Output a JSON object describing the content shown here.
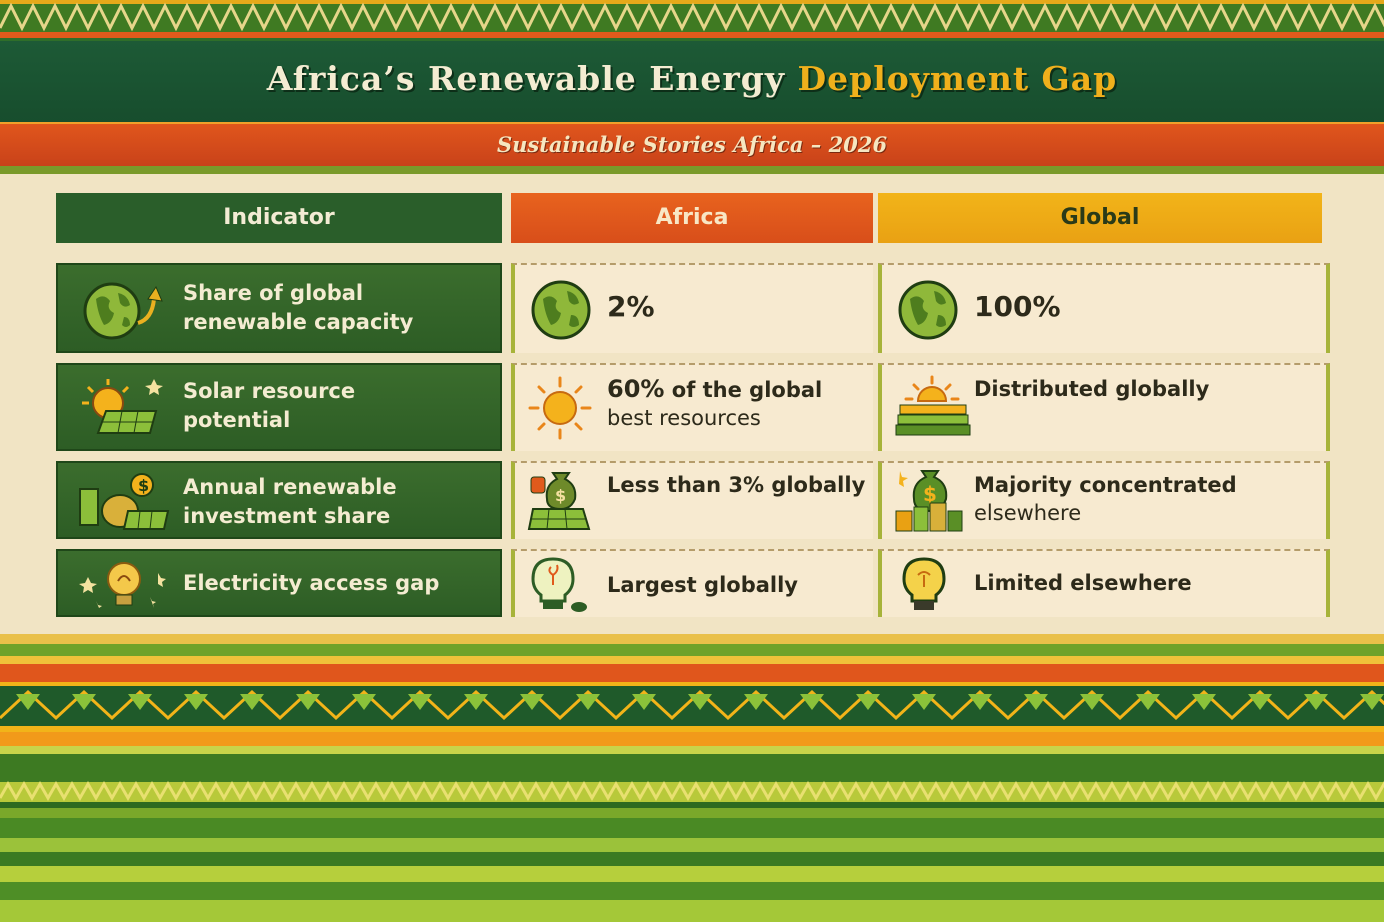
{
  "header": {
    "title_main": "Africa’s Renewable Energy ",
    "title_accent": "Deployment Gap",
    "subtitle": "Sustainable Stories Africa – 2026"
  },
  "table": {
    "headers": {
      "indicator": "Indicator",
      "africa": "Africa",
      "global": "Global"
    },
    "rows": [
      {
        "indicator": "Share of global renewable capacity",
        "indicator_line1": "Share of global",
        "indicator_line2": "renewable capacity",
        "africa_value": "2%",
        "global_value": "100%",
        "icon": "globe-icon"
      },
      {
        "indicator": "Solar resource potential",
        "indicator_line1": "Solar resource",
        "indicator_line2": "potential",
        "africa_value_bold": "60%",
        "africa_value_rest": " of the global",
        "africa_value_line2": "best resources",
        "global_value": "Distributed globally",
        "icon": "sun-solar-panel-icon"
      },
      {
        "indicator": "Annual renewable investment share",
        "indicator_line1": "Annual renewable",
        "indicator_line2": "investment share",
        "africa_value": "Less than 3% globally",
        "global_value_line1": "Majority concentrated",
        "global_value_line2": "elsewhere",
        "icon": "money-bag-icon"
      },
      {
        "indicator": "Electricity access gap",
        "indicator_line1": "Electricity access gap",
        "africa_value": "Largest globally",
        "global_value": "Limited elsewhere",
        "icon": "lightbulb-icon"
      }
    ]
  },
  "colors": {
    "green_dark": "#1d5a36",
    "green_mid": "#3b6d2d",
    "orange": "#e0561c",
    "gold": "#f2b419",
    "cream": "#f7ead0"
  }
}
